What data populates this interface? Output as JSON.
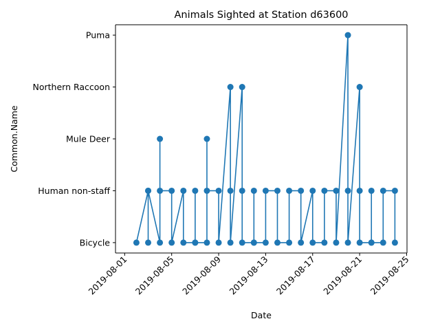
{
  "chart_data": {
    "type": "line",
    "title": "Animals Sighted at Station d63600",
    "xlabel": "Date",
    "ylabel": "Common.Name",
    "categories": [
      "Bicycle",
      "Human non-staff",
      "Mule Deer",
      "Northern Raccoon",
      "Puma"
    ],
    "x_ticks": [
      "2019-08-01",
      "2019-08-05",
      "2019-08-09",
      "2019-08-13",
      "2019-08-17",
      "2019-08-21",
      "2019-08-25"
    ],
    "xlim": [
      "2019-07-31",
      "2019-08-25"
    ],
    "grid": false,
    "series": [
      {
        "color": "#1f77b4",
        "marker": "circle",
        "points": [
          {
            "x": "2019-08-02",
            "y": "Bicycle"
          },
          {
            "x": "2019-08-03",
            "y": "Human non-staff"
          },
          {
            "x": "2019-08-03",
            "y": "Bicycle"
          },
          {
            "x": "2019-08-03",
            "y": "Human non-staff"
          },
          {
            "x": "2019-08-04",
            "y": "Bicycle"
          },
          {
            "x": "2019-08-04",
            "y": "Mule Deer"
          },
          {
            "x": "2019-08-04",
            "y": "Human non-staff"
          },
          {
            "x": "2019-08-05",
            "y": "Human non-staff"
          },
          {
            "x": "2019-08-05",
            "y": "Bicycle"
          },
          {
            "x": "2019-08-06",
            "y": "Human non-staff"
          },
          {
            "x": "2019-08-06",
            "y": "Bicycle"
          },
          {
            "x": "2019-08-07",
            "y": "Bicycle"
          },
          {
            "x": "2019-08-07",
            "y": "Human non-staff"
          },
          {
            "x": "2019-08-07",
            "y": "Bicycle"
          },
          {
            "x": "2019-08-08",
            "y": "Bicycle"
          },
          {
            "x": "2019-08-08",
            "y": "Mule Deer"
          },
          {
            "x": "2019-08-08",
            "y": "Human non-staff"
          },
          {
            "x": "2019-08-09",
            "y": "Human non-staff"
          },
          {
            "x": "2019-08-09",
            "y": "Bicycle"
          },
          {
            "x": "2019-08-10",
            "y": "Northern Raccoon"
          },
          {
            "x": "2019-08-10",
            "y": "Human non-staff"
          },
          {
            "x": "2019-08-10",
            "y": "Bicycle"
          },
          {
            "x": "2019-08-11",
            "y": "Northern Raccoon"
          },
          {
            "x": "2019-08-11",
            "y": "Human non-staff"
          },
          {
            "x": "2019-08-11",
            "y": "Bicycle"
          },
          {
            "x": "2019-08-12",
            "y": "Bicycle"
          },
          {
            "x": "2019-08-12",
            "y": "Human non-staff"
          },
          {
            "x": "2019-08-12",
            "y": "Bicycle"
          },
          {
            "x": "2019-08-13",
            "y": "Bicycle"
          },
          {
            "x": "2019-08-13",
            "y": "Human non-staff"
          },
          {
            "x": "2019-08-14",
            "y": "Human non-staff"
          },
          {
            "x": "2019-08-14",
            "y": "Bicycle"
          },
          {
            "x": "2019-08-15",
            "y": "Bicycle"
          },
          {
            "x": "2019-08-15",
            "y": "Human non-staff"
          },
          {
            "x": "2019-08-16",
            "y": "Human non-staff"
          },
          {
            "x": "2019-08-16",
            "y": "Bicycle"
          },
          {
            "x": "2019-08-17",
            "y": "Human non-staff"
          },
          {
            "x": "2019-08-17",
            "y": "Bicycle"
          },
          {
            "x": "2019-08-18",
            "y": "Bicycle"
          },
          {
            "x": "2019-08-18",
            "y": "Human non-staff"
          },
          {
            "x": "2019-08-19",
            "y": "Human non-staff"
          },
          {
            "x": "2019-08-19",
            "y": "Bicycle"
          },
          {
            "x": "2019-08-20",
            "y": "Puma"
          },
          {
            "x": "2019-08-20",
            "y": "Human non-staff"
          },
          {
            "x": "2019-08-20",
            "y": "Bicycle"
          },
          {
            "x": "2019-08-21",
            "y": "Northern Raccoon"
          },
          {
            "x": "2019-08-21",
            "y": "Human non-staff"
          },
          {
            "x": "2019-08-21",
            "y": "Bicycle"
          },
          {
            "x": "2019-08-22",
            "y": "Bicycle"
          },
          {
            "x": "2019-08-22",
            "y": "Human non-staff"
          },
          {
            "x": "2019-08-22",
            "y": "Bicycle"
          },
          {
            "x": "2019-08-23",
            "y": "Bicycle"
          },
          {
            "x": "2019-08-23",
            "y": "Human non-staff"
          },
          {
            "x": "2019-08-24",
            "y": "Human non-staff"
          },
          {
            "x": "2019-08-24",
            "y": "Bicycle"
          }
        ]
      }
    ]
  }
}
